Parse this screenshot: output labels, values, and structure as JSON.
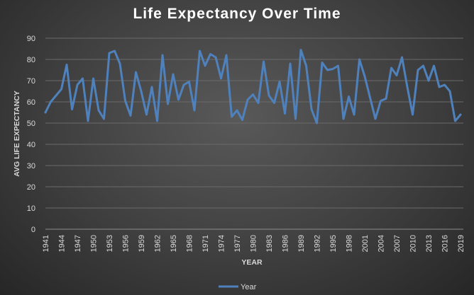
{
  "chart_data": {
    "type": "line",
    "title": "Life Expectancy Over Time",
    "xlabel": "YEAR",
    "ylabel": "AVG LIFE EXPECTANCY",
    "ylim": [
      0,
      90
    ],
    "yticks": [
      0,
      10,
      20,
      30,
      40,
      50,
      60,
      70,
      80,
      90
    ],
    "xticks": [
      1941,
      1944,
      1947,
      1950,
      1953,
      1956,
      1959,
      1962,
      1965,
      1968,
      1971,
      1974,
      1977,
      1980,
      1983,
      1986,
      1989,
      1992,
      1995,
      1998,
      2001,
      2004,
      2007,
      2010,
      2013,
      2016,
      2019
    ],
    "grid": true,
    "legend": "bottom",
    "color": "#4f81bd",
    "series": [
      {
        "name": "Year",
        "x": [
          1941,
          1942,
          1943,
          1944,
          1945,
          1946,
          1947,
          1948,
          1949,
          1950,
          1951,
          1952,
          1953,
          1954,
          1955,
          1956,
          1957,
          1958,
          1959,
          1960,
          1961,
          1962,
          1963,
          1964,
          1965,
          1966,
          1967,
          1968,
          1969,
          1970,
          1971,
          1972,
          1973,
          1974,
          1975,
          1976,
          1977,
          1978,
          1979,
          1980,
          1981,
          1982,
          1983,
          1984,
          1985,
          1986,
          1987,
          1988,
          1989,
          1990,
          1991,
          1992,
          1993,
          1994,
          1995,
          1996,
          1997,
          1998,
          1999,
          2000,
          2001,
          2002,
          2003,
          2004,
          2005,
          2006,
          2007,
          2008,
          2009,
          2010,
          2011,
          2012,
          2013,
          2014,
          2015,
          2016,
          2017,
          2018,
          2019
        ],
        "values": [
          55,
          60,
          63,
          66,
          77.5,
          56.5,
          68,
          71,
          51,
          71,
          56,
          52,
          83,
          84,
          78,
          60.5,
          53.5,
          74,
          65,
          54,
          67,
          51,
          82,
          59,
          73,
          61,
          68,
          69.5,
          56,
          84,
          77,
          82.5,
          81,
          71,
          82,
          53,
          56,
          51.5,
          61,
          63.5,
          59.5,
          79,
          63,
          59.5,
          69.5,
          54.5,
          78,
          52,
          84.5,
          77,
          56.5,
          50,
          78.5,
          75,
          75.5,
          77,
          52,
          62.5,
          54,
          80,
          72,
          62,
          52,
          60.5,
          61.5,
          76,
          72.5,
          81,
          67,
          54,
          75,
          77,
          70,
          77,
          67,
          68,
          65,
          51,
          54
        ]
      }
    ]
  }
}
